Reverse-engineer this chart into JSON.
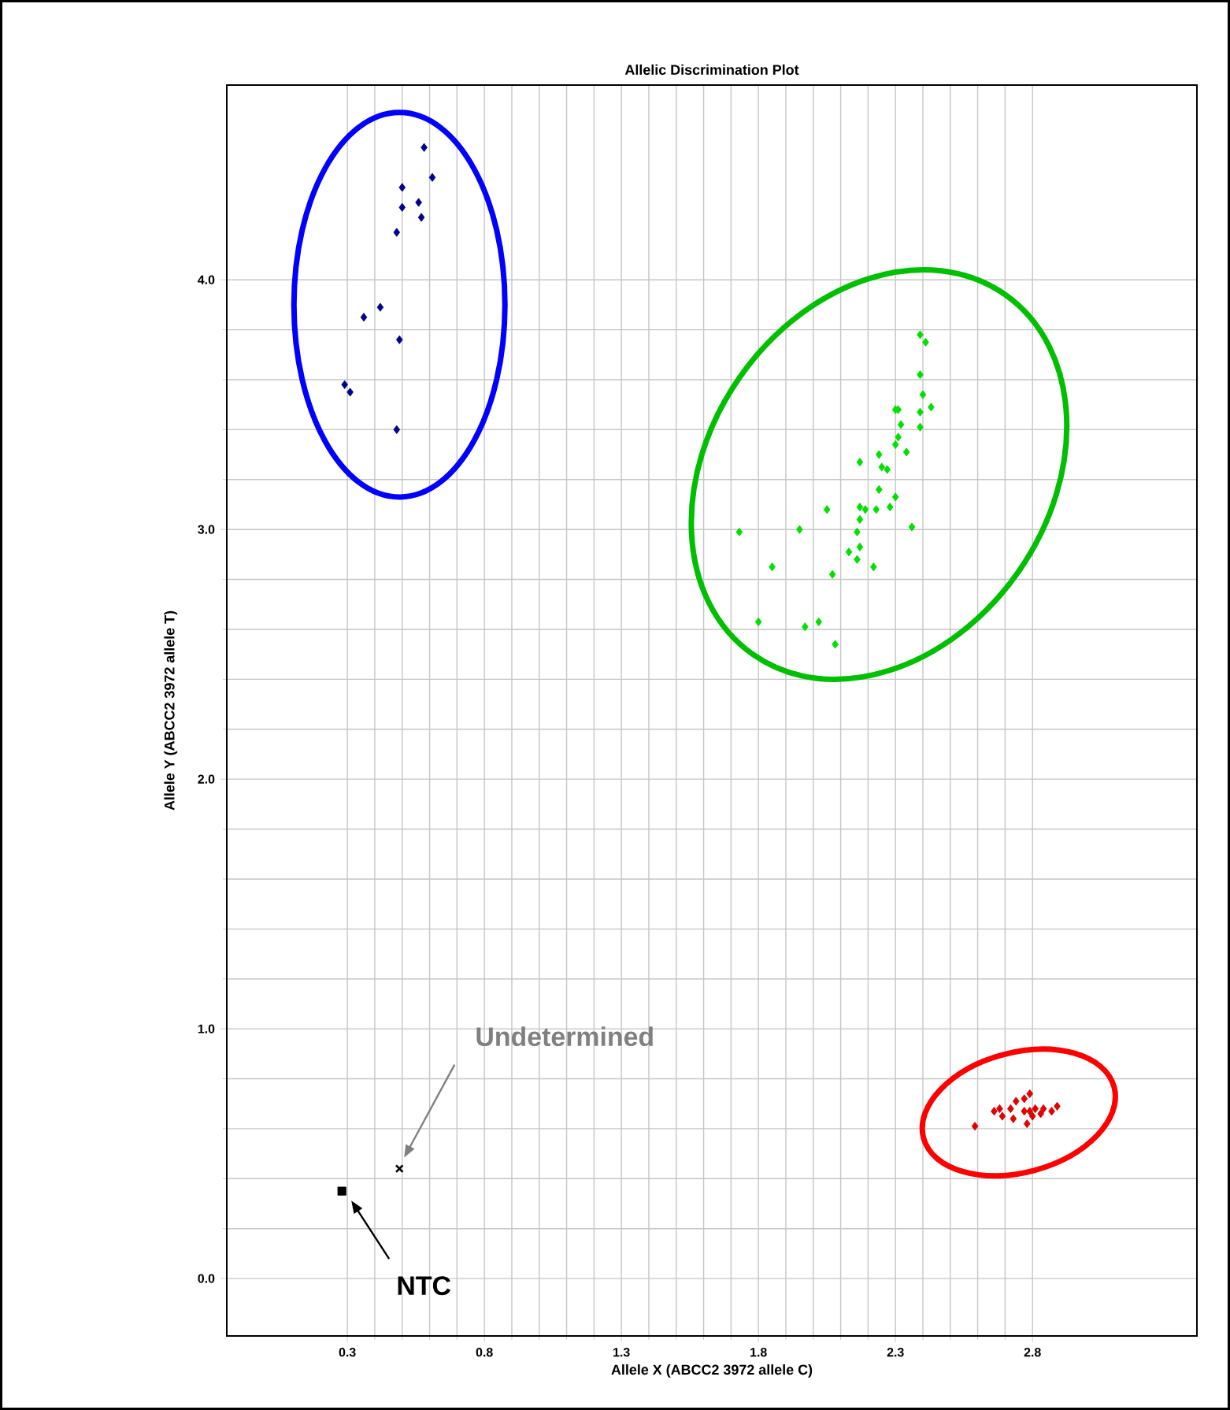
{
  "chart_data": {
    "type": "scatter",
    "title": "Allelic Discrimination Plot",
    "xlabel": "Allele X (ABCC2 3972 allele C)",
    "ylabel": "Allele Y (ABCC2 3972 allele T)",
    "xlim": [
      -0.14,
      3.4
    ],
    "ylim": [
      -0.23,
      4.78
    ],
    "xticks": [
      0.3,
      0.8,
      1.3,
      1.8,
      2.3,
      2.8
    ],
    "yticks": [
      {
        "value": 0,
        "label": "0.0"
      },
      {
        "value": 1,
        "label": "1.0"
      },
      {
        "value": 2,
        "label": "2.0"
      },
      {
        "value": 3,
        "label": "3.0"
      },
      {
        "value": 4,
        "label": "4.0"
      }
    ],
    "grid": true,
    "marker": "diamond",
    "series": [
      {
        "color": "#00008b",
        "x": [
          0.58,
          0.61,
          0.5,
          0.56,
          0.5,
          0.57,
          0.48,
          0.42,
          0.36,
          0.49,
          0.29,
          0.31,
          0.48
        ],
        "values": [
          4.53,
          4.41,
          4.37,
          4.31,
          4.29,
          4.25,
          4.19,
          3.89,
          3.85,
          3.76,
          3.58,
          3.55,
          3.4
        ]
      },
      {
        "color": "#00e000",
        "x": [
          2.39,
          2.41,
          2.39,
          2.4,
          2.3,
          2.31,
          2.43,
          2.39,
          2.32,
          2.39,
          2.31,
          2.3,
          2.34,
          2.24,
          2.17,
          2.25,
          2.27,
          2.24,
          2.3,
          2.28,
          2.05,
          2.17,
          2.19,
          2.23,
          2.17,
          1.73,
          1.95,
          2.16,
          2.36,
          2.17,
          2.13,
          2.16,
          1.85,
          2.22,
          2.07,
          1.8,
          1.97,
          2.02,
          2.08
        ],
        "values": [
          3.78,
          3.75,
          3.62,
          3.54,
          3.48,
          3.48,
          3.49,
          3.47,
          3.42,
          3.41,
          3.37,
          3.34,
          3.31,
          3.3,
          3.27,
          3.25,
          3.24,
          3.16,
          3.13,
          3.09,
          3.08,
          3.09,
          3.08,
          3.08,
          3.04,
          2.99,
          3.0,
          2.99,
          3.01,
          2.93,
          2.91,
          2.88,
          2.85,
          2.85,
          2.82,
          2.63,
          2.61,
          2.63,
          2.54
        ]
      },
      {
        "color": "#e00000",
        "x": [
          2.59,
          2.66,
          2.68,
          2.69,
          2.72,
          2.74,
          2.77,
          2.79,
          2.77,
          2.79,
          2.81,
          2.83,
          2.78,
          2.84,
          2.87,
          2.89,
          2.8,
          2.73
        ],
        "values": [
          0.61,
          0.67,
          0.68,
          0.65,
          0.68,
          0.71,
          0.72,
          0.74,
          0.67,
          0.67,
          0.68,
          0.66,
          0.62,
          0.68,
          0.67,
          0.69,
          0.65,
          0.64
        ]
      },
      {
        "color": "#000000",
        "marker": "square",
        "x": [
          0.28
        ],
        "values": [
          0.35
        ]
      },
      {
        "color": "#000000",
        "marker": "cross",
        "x": [
          0.49
        ],
        "values": [
          0.44
        ]
      }
    ],
    "annotations": [
      "Undetermined",
      "NTC"
    ]
  }
}
